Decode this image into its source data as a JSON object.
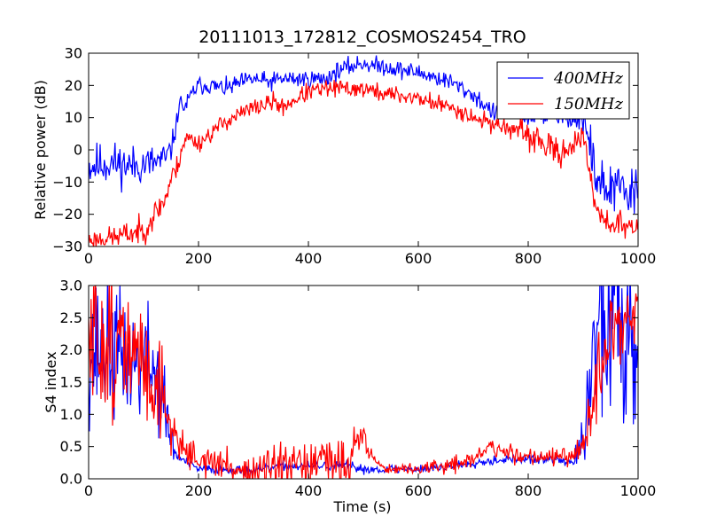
{
  "figure": {
    "title": "20111013_172812_COSMOS2454_TRO",
    "x_label": "Time (s)"
  },
  "colors": {
    "blue": "#0000ff",
    "red": "#ff0000"
  },
  "chart_data": [
    {
      "type": "line",
      "title": "20111013_172812_COSMOS2454_TRO",
      "xlabel": "",
      "ylabel": "Relative power (dB)",
      "xlim": [
        0,
        1000
      ],
      "ylim": [
        -30,
        30
      ],
      "x_ticks": [
        "0",
        "200",
        "400",
        "600",
        "800",
        "1000"
      ],
      "y_ticks": [
        "−30",
        "−20",
        "−10",
        "0",
        "10",
        "20",
        "30"
      ],
      "grid": false,
      "legend": {
        "placement": "top-right",
        "entries": [
          {
            "label": "400MHz",
            "color": "#0000ff"
          },
          {
            "label": "150MHz",
            "color": "#ff0000"
          }
        ]
      },
      "series": [
        {
          "name": "400MHz",
          "color": "#0000ff",
          "noise_amplitude": [
            [
              0,
              5
            ],
            [
              140,
              4
            ],
            [
              160,
              2
            ],
            [
              880,
              2
            ],
            [
              910,
              6
            ],
            [
              1000,
              6
            ]
          ],
          "x": [
            0,
            40,
            80,
            120,
            140,
            150,
            160,
            165,
            175,
            190,
            200,
            220,
            250,
            280,
            300,
            330,
            350,
            370,
            400,
            430,
            460,
            500,
            520,
            540,
            560,
            600,
            620,
            640,
            660,
            680,
            700,
            720,
            740,
            760,
            780,
            800,
            820,
            850,
            880,
            900,
            910,
            920,
            940,
            960,
            980,
            1000
          ],
          "y": [
            -5,
            -4,
            -5,
            -4,
            -3,
            0,
            8,
            15,
            13,
            18,
            20,
            20,
            19,
            21,
            22,
            21,
            22,
            22,
            22,
            22,
            25,
            27,
            26,
            26,
            25,
            24,
            23,
            22,
            21,
            19,
            17,
            14,
            11,
            13,
            11,
            10,
            11,
            10,
            10,
            9,
            3,
            -6,
            -13,
            -12,
            -14,
            -13
          ]
        },
        {
          "name": "150MHz",
          "color": "#ff0000",
          "noise_amplitude": [
            [
              0,
              2
            ],
            [
              100,
              3
            ],
            [
              150,
              3
            ],
            [
              180,
              2
            ],
            [
              760,
              2
            ],
            [
              800,
              3
            ],
            [
              880,
              3
            ],
            [
              920,
              3
            ],
            [
              1000,
              3
            ]
          ],
          "x": [
            0,
            50,
            100,
            120,
            140,
            150,
            160,
            170,
            180,
            200,
            250,
            300,
            340,
            350,
            380,
            400,
            440,
            460,
            500,
            520,
            560,
            600,
            620,
            640,
            660,
            680,
            700,
            720,
            740,
            760,
            780,
            800,
            820,
            840,
            860,
            880,
            900,
            905,
            915,
            925,
            940,
            960,
            980,
            1000
          ],
          "y": [
            -28,
            -27,
            -25,
            -20,
            -15,
            -9,
            -6,
            1,
            4,
            2,
            9,
            13,
            15,
            13,
            16,
            18,
            19,
            19,
            19,
            18,
            17,
            16,
            15,
            14,
            13,
            12,
            10,
            9,
            8,
            7,
            6,
            4,
            3,
            0,
            -1,
            2,
            3,
            -1,
            -10,
            -18,
            -22,
            -23,
            -24,
            -25
          ]
        }
      ]
    },
    {
      "type": "line",
      "title": "",
      "xlabel": "Time (s)",
      "ylabel": "S4 index",
      "xlim": [
        0,
        1000
      ],
      "ylim": [
        0,
        3
      ],
      "x_ticks": [
        "0",
        "200",
        "400",
        "600",
        "800",
        "1000"
      ],
      "y_ticks": [
        "0.0",
        "0.5",
        "1.0",
        "1.5",
        "2.0",
        "2.5",
        "3.0"
      ],
      "grid": false,
      "series": [
        {
          "name": "400MHz",
          "color": "#0000ff",
          "noise_amplitude": [
            [
              0,
              0.8
            ],
            [
              130,
              0.6
            ],
            [
              160,
              0.05
            ],
            [
              880,
              0.05
            ],
            [
              900,
              0.3
            ],
            [
              940,
              1.2
            ],
            [
              1000,
              1.2
            ]
          ],
          "x": [
            0,
            40,
            80,
            110,
            130,
            140,
            150,
            160,
            180,
            200,
            250,
            300,
            350,
            400,
            450,
            470,
            500,
            550,
            600,
            650,
            700,
            750,
            800,
            850,
            880,
            900,
            910,
            920,
            940,
            960,
            1000
          ],
          "y": [
            2.0,
            2.0,
            1.8,
            1.8,
            1.5,
            1.0,
            0.6,
            0.35,
            0.25,
            0.15,
            0.15,
            0.12,
            0.2,
            0.2,
            0.2,
            0.2,
            0.15,
            0.15,
            0.15,
            0.18,
            0.25,
            0.3,
            0.3,
            0.3,
            0.25,
            0.5,
            1.2,
            2.2,
            2.5,
            2.5,
            2.5
          ]
        },
        {
          "name": "150MHz",
          "color": "#ff0000",
          "noise_amplitude": [
            [
              0,
              0.9
            ],
            [
              130,
              0.6
            ],
            [
              160,
              0.15
            ],
            [
              480,
              0.3
            ],
            [
              520,
              0.05
            ],
            [
              700,
              0.1
            ],
            [
              880,
              0.1
            ],
            [
              920,
              0.4
            ],
            [
              1000,
              0.4
            ]
          ],
          "x": [
            0,
            30,
            60,
            100,
            130,
            150,
            170,
            200,
            250,
            300,
            350,
            400,
            450,
            480,
            490,
            500,
            520,
            540,
            600,
            650,
            700,
            730,
            760,
            800,
            850,
            880,
            900,
            920,
            940,
            960,
            1000
          ],
          "y": [
            2.0,
            2.2,
            2.0,
            1.8,
            1.4,
            0.8,
            0.5,
            0.3,
            0.2,
            0.1,
            0.15,
            0.2,
            0.25,
            0.35,
            0.7,
            0.6,
            0.3,
            0.15,
            0.15,
            0.2,
            0.3,
            0.5,
            0.4,
            0.35,
            0.35,
            0.3,
            0.5,
            1.3,
            2.0,
            2.3,
            2.6
          ]
        }
      ]
    }
  ]
}
